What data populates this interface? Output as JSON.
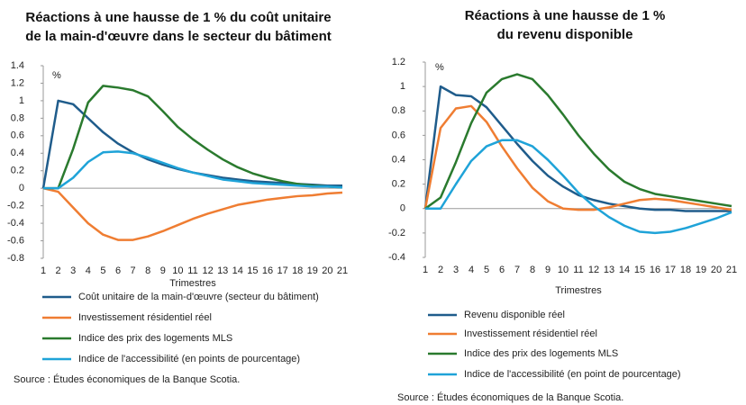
{
  "chart_data": [
    {
      "type": "line",
      "title": [
        "Réactions à une hausse de 1 % du coût unitaire",
        "de la main-d'œuvre dans le secteur du bâtiment"
      ],
      "unit": "%",
      "xlabel": "Trimestres",
      "x": [
        1,
        2,
        3,
        4,
        5,
        6,
        7,
        8,
        9,
        10,
        11,
        12,
        13,
        14,
        15,
        16,
        17,
        18,
        19,
        20,
        21
      ],
      "xlim": [
        1,
        21
      ],
      "xticks": [
        1,
        2,
        3,
        4,
        5,
        6,
        7,
        8,
        9,
        10,
        11,
        12,
        13,
        14,
        15,
        16,
        17,
        18,
        19,
        20,
        21
      ],
      "ylim": [
        -0.8,
        1.4
      ],
      "yticks": [
        -0.8,
        -0.6,
        -0.4,
        -0.2,
        0,
        0.2,
        0.4,
        0.6,
        0.8,
        1,
        1.2,
        1.4
      ],
      "series": [
        {
          "name": "Coût unitaire de la main-d'œuvre (secteur du bâtiment)",
          "color": "#1f5c8b",
          "values": [
            0,
            1.0,
            0.96,
            0.8,
            0.64,
            0.51,
            0.41,
            0.33,
            0.27,
            0.22,
            0.18,
            0.15,
            0.12,
            0.1,
            0.08,
            0.07,
            0.06,
            0.05,
            0.04,
            0.03,
            0.03
          ]
        },
        {
          "name": "Investissement résidentiel réel",
          "color": "#ef7d32",
          "values": [
            0,
            -0.04,
            -0.22,
            -0.4,
            -0.53,
            -0.59,
            -0.59,
            -0.55,
            -0.49,
            -0.42,
            -0.35,
            -0.29,
            -0.24,
            -0.19,
            -0.16,
            -0.13,
            -0.11,
            -0.09,
            -0.08,
            -0.06,
            -0.05
          ]
        },
        {
          "name": "Indice des prix des logements MLS",
          "color": "#2a7a2e",
          "values": [
            0,
            0,
            0.45,
            0.98,
            1.17,
            1.15,
            1.12,
            1.05,
            0.88,
            0.7,
            0.56,
            0.44,
            0.33,
            0.24,
            0.17,
            0.12,
            0.08,
            0.05,
            0.03,
            0.02,
            0.01
          ]
        },
        {
          "name": "Indice de l'accessibilité (en points de pourcentage)",
          "color": "#1fa3d8",
          "values": [
            0,
            0,
            0.12,
            0.3,
            0.41,
            0.42,
            0.4,
            0.35,
            0.29,
            0.23,
            0.18,
            0.14,
            0.1,
            0.08,
            0.06,
            0.05,
            0.04,
            0.03,
            0.02,
            0.02,
            0.01
          ]
        }
      ],
      "source": "Source : Études économiques de la Banque Scotia."
    },
    {
      "type": "line",
      "title": [
        "Réactions à une hausse de 1 %",
        "du revenu disponible"
      ],
      "unit": "%",
      "xlabel": "Trimestres",
      "x": [
        1,
        2,
        3,
        4,
        5,
        6,
        7,
        8,
        9,
        10,
        11,
        12,
        13,
        14,
        15,
        16,
        17,
        18,
        19,
        20,
        21
      ],
      "xlim": [
        1,
        21
      ],
      "xticks": [
        1,
        2,
        3,
        4,
        5,
        6,
        7,
        8,
        9,
        10,
        11,
        12,
        13,
        14,
        15,
        16,
        17,
        18,
        19,
        20,
        21
      ],
      "ylim": [
        -0.4,
        1.2
      ],
      "yticks": [
        -0.4,
        -0.2,
        0,
        0.2,
        0.4,
        0.6,
        0.8,
        1,
        1.2
      ],
      "series": [
        {
          "name": "Revenu disponible réel",
          "color": "#1f5c8b",
          "values": [
            0,
            1.0,
            0.93,
            0.92,
            0.83,
            0.68,
            0.53,
            0.39,
            0.27,
            0.18,
            0.11,
            0.07,
            0.04,
            0.02,
            0.0,
            -0.01,
            -0.01,
            -0.02,
            -0.02,
            -0.02,
            -0.02
          ]
        },
        {
          "name": "Investissement résidentiel réel",
          "color": "#ef7d32",
          "values": [
            0,
            0.66,
            0.82,
            0.84,
            0.71,
            0.51,
            0.33,
            0.17,
            0.06,
            0.0,
            -0.01,
            -0.01,
            0.01,
            0.04,
            0.07,
            0.08,
            0.07,
            0.05,
            0.03,
            0.01,
            -0.01
          ]
        },
        {
          "name": "Indice des prix des logements MLS",
          "color": "#2a7a2e",
          "values": [
            0,
            0.09,
            0.38,
            0.7,
            0.95,
            1.06,
            1.1,
            1.06,
            0.93,
            0.77,
            0.6,
            0.45,
            0.32,
            0.22,
            0.16,
            0.12,
            0.1,
            0.08,
            0.06,
            0.04,
            0.02
          ]
        },
        {
          "name": "Indice de l'accessibilité (en point de pourcentage)",
          "color": "#1fa3d8",
          "values": [
            0,
            0,
            0.2,
            0.39,
            0.51,
            0.56,
            0.56,
            0.51,
            0.4,
            0.27,
            0.13,
            0.02,
            -0.07,
            -0.14,
            -0.19,
            -0.2,
            -0.19,
            -0.16,
            -0.12,
            -0.08,
            -0.03
          ]
        }
      ],
      "source": "Source : Études économiques de la Banque Scotia."
    }
  ]
}
